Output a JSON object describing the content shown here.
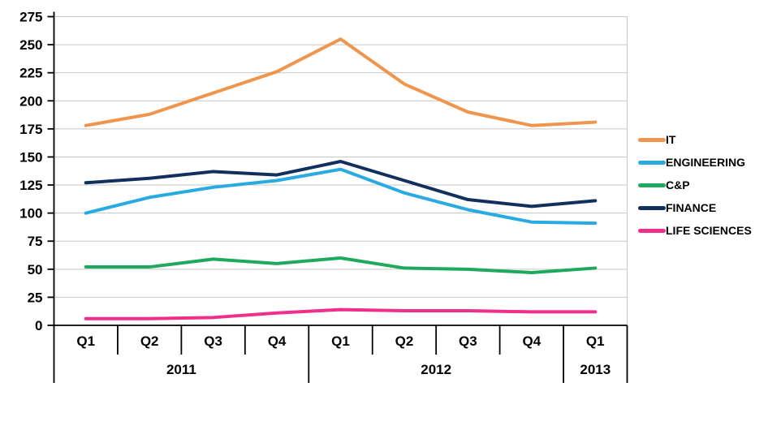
{
  "chart_data": {
    "type": "line",
    "title": "",
    "xlabel": "",
    "ylabel": "",
    "categories": [
      "Q1",
      "Q2",
      "Q3",
      "Q4",
      "Q1",
      "Q2",
      "Q3",
      "Q4",
      "Q1"
    ],
    "year_groups": [
      {
        "label": "2011",
        "span": 4
      },
      {
        "label": "2012",
        "span": 4
      },
      {
        "label": "2013",
        "span": 1
      }
    ],
    "series": [
      {
        "name": "IT",
        "color": "#F0954D",
        "values": [
          178,
          188,
          207,
          226,
          255,
          215,
          190,
          178,
          181
        ]
      },
      {
        "name": "ENGINEERING",
        "color": "#29ABE2",
        "values": [
          100,
          114,
          123,
          129,
          139,
          118,
          103,
          92,
          91
        ]
      },
      {
        "name": "C&P",
        "color": "#1FA95C",
        "values": [
          52,
          52,
          59,
          55,
          60,
          51,
          50,
          47,
          51
        ]
      },
      {
        "name": "FINANCE",
        "color": "#12305E",
        "values": [
          127,
          131,
          137,
          134,
          146,
          129,
          112,
          106,
          111
        ]
      },
      {
        "name": "LIFE SCIENCES",
        "color": "#EF2F8B",
        "values": [
          6,
          6,
          7,
          11,
          14,
          13,
          13,
          12,
          12
        ]
      }
    ],
    "ylim": [
      0,
      275
    ],
    "ytick_step": 25,
    "grid": true,
    "legend_position": "right",
    "colors": {
      "gridline": "#C6C6C6",
      "axis": "#000000",
      "text": "#000000",
      "background": "#FFFFFF"
    }
  }
}
